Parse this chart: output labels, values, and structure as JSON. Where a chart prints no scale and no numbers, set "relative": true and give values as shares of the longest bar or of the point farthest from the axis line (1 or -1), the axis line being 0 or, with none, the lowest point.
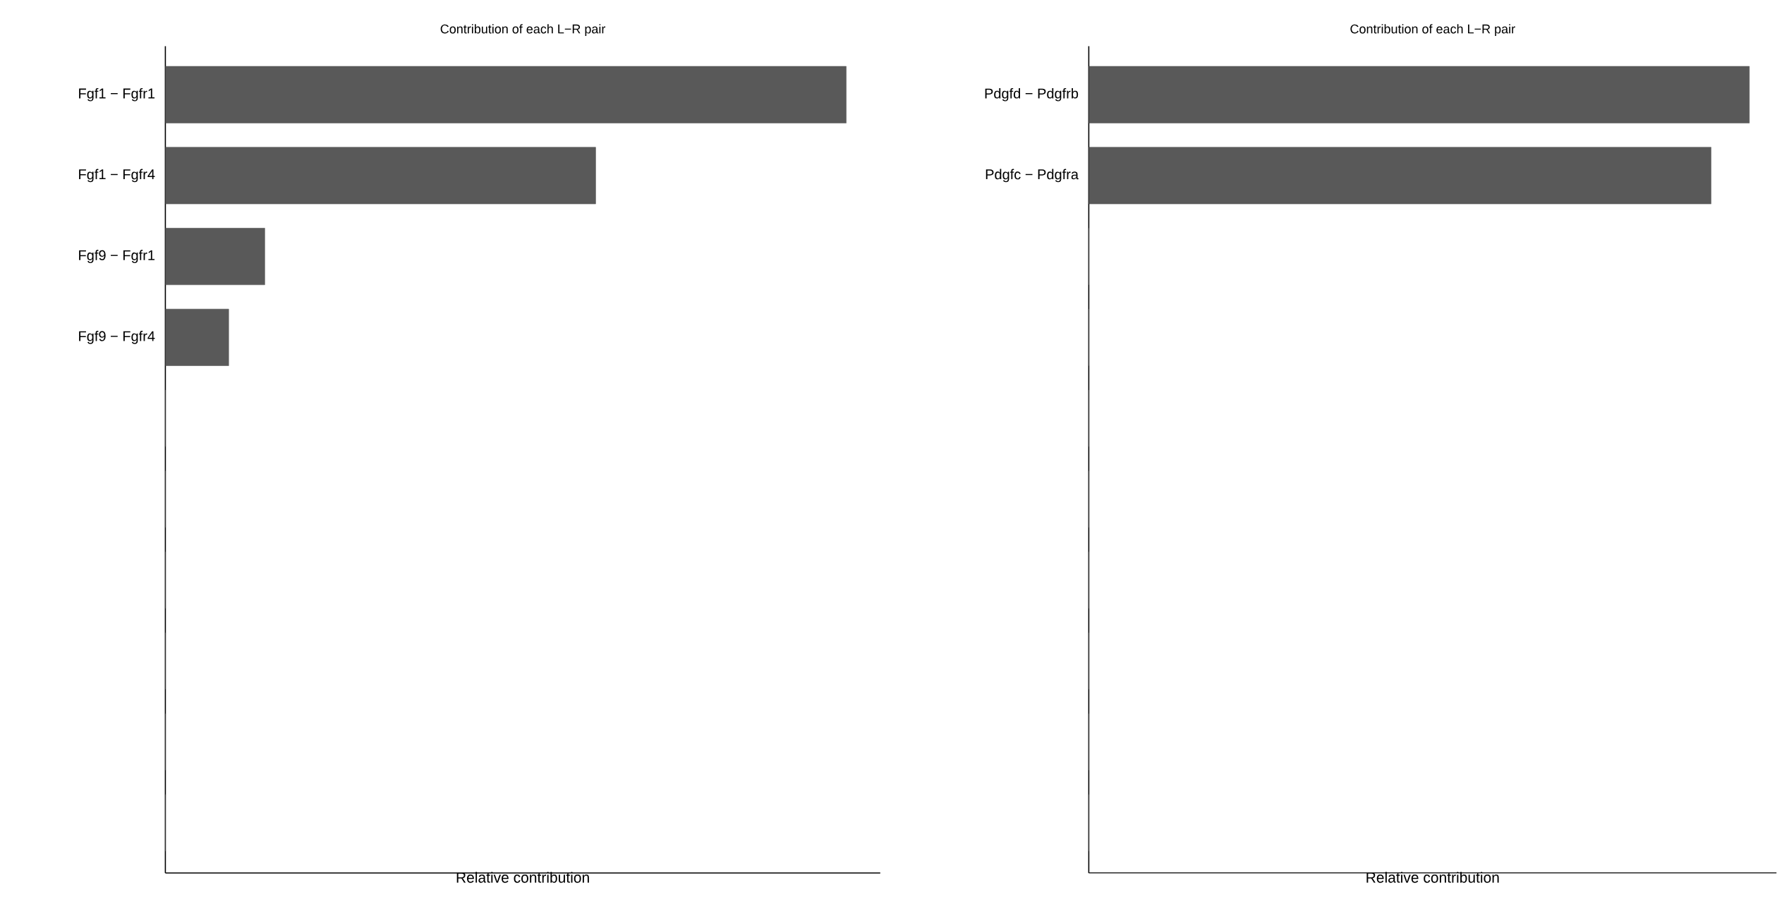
{
  "chart_data": [
    {
      "type": "bar",
      "orientation": "horizontal",
      "relative": true,
      "title": "Contribution of each L−R pair",
      "xlabel": "Relative contribution",
      "color": "#595959",
      "categories": [
        "Fgf1  − Fgfr1",
        "Fgf1  − Fgfr4",
        "Fgf9  − Fgfr1",
        "Fgf9  − Fgfr4",
        null,
        null,
        null,
        null,
        null,
        null
      ],
      "values": [
        1,
        0.632,
        0.146,
        0.093,
        0,
        0,
        0,
        0,
        0,
        0
      ]
    },
    {
      "type": "bar",
      "orientation": "horizontal",
      "relative": true,
      "title": "Contribution of each L−R pair",
      "xlabel": "Relative contribution",
      "color": "#595959",
      "categories": [
        "Pdgfd  − Pdgfrb",
        "Pdgfc  − Pdgfra",
        null,
        null,
        null,
        null,
        null,
        null,
        null,
        null
      ],
      "values": [
        1,
        0.942,
        0,
        0,
        0,
        0,
        0,
        0,
        0,
        0
      ]
    }
  ]
}
